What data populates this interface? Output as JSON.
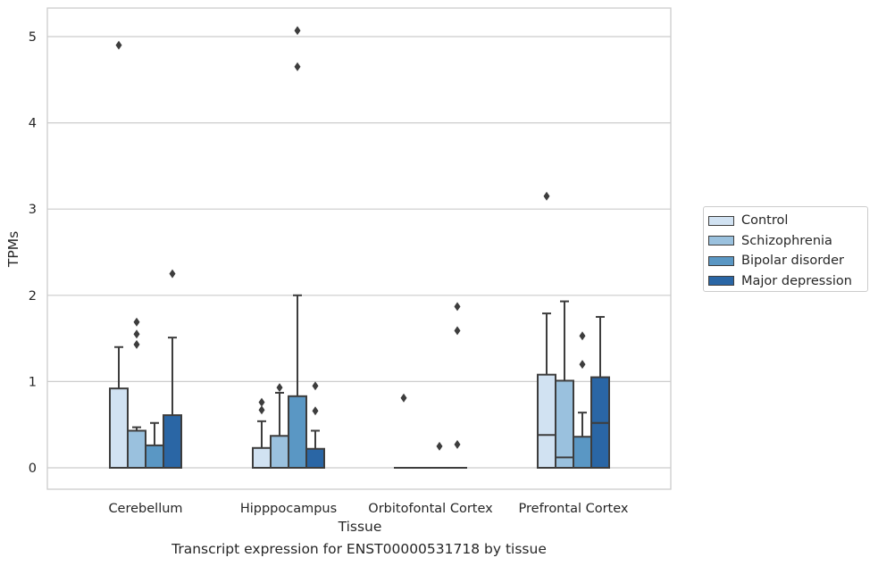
{
  "chart_data": {
    "type": "boxplot",
    "xlabel": "Tissue",
    "ylabel": "TPMs",
    "caption": "Transcript expression for ENST00000531718 by tissue",
    "ylim": [
      -0.25,
      5.32
    ],
    "yticks": [
      0,
      1,
      2,
      3,
      4,
      5
    ],
    "grid": true,
    "legend_position": "outside-right",
    "categories": [
      "Cerebellum",
      "Hipppocampus",
      "Orbitofontal Cortex",
      "Prefrontal Cortex"
    ],
    "series": [
      {
        "name": "Control",
        "color": "#d1e2f2",
        "boxes": [
          {
            "min": 0,
            "q1": 0,
            "median": 0,
            "q3": 0.92,
            "max": 1.4,
            "outliers": [
              4.9
            ]
          },
          {
            "min": 0,
            "q1": 0,
            "median": 0,
            "q3": 0.23,
            "max": 0.54,
            "outliers": [
              0.67,
              0.76
            ]
          },
          {
            "min": 0,
            "q1": 0,
            "median": 0,
            "q3": 0,
            "max": 0,
            "outliers": [
              0.81
            ]
          },
          {
            "min": 0,
            "q1": 0,
            "median": 0.38,
            "q3": 1.08,
            "max": 1.79,
            "outliers": [
              3.15
            ]
          }
        ]
      },
      {
        "name": "Schizophrenia",
        "color": "#9ac1de",
        "boxes": [
          {
            "min": 0,
            "q1": 0,
            "median": 0,
            "q3": 0.43,
            "max": 0.47,
            "outliers": [
              1.43,
              1.55,
              1.69
            ]
          },
          {
            "min": 0,
            "q1": 0,
            "median": 0,
            "q3": 0.37,
            "max": 0.87,
            "outliers": [
              0.93
            ]
          },
          {
            "min": 0,
            "q1": 0,
            "median": 0,
            "q3": 0,
            "max": 0,
            "outliers": []
          },
          {
            "min": 0,
            "q1": 0,
            "median": 0.12,
            "q3": 1.01,
            "max": 1.93,
            "outliers": []
          }
        ]
      },
      {
        "name": "Bipolar disorder",
        "color": "#5a97c4",
        "boxes": [
          {
            "min": 0,
            "q1": 0,
            "median": 0,
            "q3": 0.26,
            "max": 0.52,
            "outliers": []
          },
          {
            "min": 0,
            "q1": 0,
            "median": 0,
            "q3": 0.83,
            "max": 2.0,
            "outliers": [
              4.65,
              5.07
            ]
          },
          {
            "min": 0,
            "q1": 0,
            "median": 0,
            "q3": 0,
            "max": 0,
            "outliers": [
              0.25
            ]
          },
          {
            "min": 0,
            "q1": 0,
            "median": 0,
            "q3": 0.36,
            "max": 0.64,
            "outliers": [
              1.2,
              1.53
            ]
          }
        ]
      },
      {
        "name": "Major depression",
        "color": "#2a66a5",
        "boxes": [
          {
            "min": 0,
            "q1": 0,
            "median": 0,
            "q3": 0.61,
            "max": 1.51,
            "outliers": [
              2.25
            ]
          },
          {
            "min": 0,
            "q1": 0,
            "median": 0,
            "q3": 0.22,
            "max": 0.43,
            "outliers": [
              0.66,
              0.95
            ]
          },
          {
            "min": 0,
            "q1": 0,
            "median": 0,
            "q3": 0,
            "max": 0,
            "outliers": [
              0.27,
              1.59,
              1.87
            ]
          },
          {
            "min": 0,
            "q1": 0,
            "median": 0.52,
            "q3": 1.05,
            "max": 1.75,
            "outliers": []
          }
        ]
      }
    ]
  }
}
